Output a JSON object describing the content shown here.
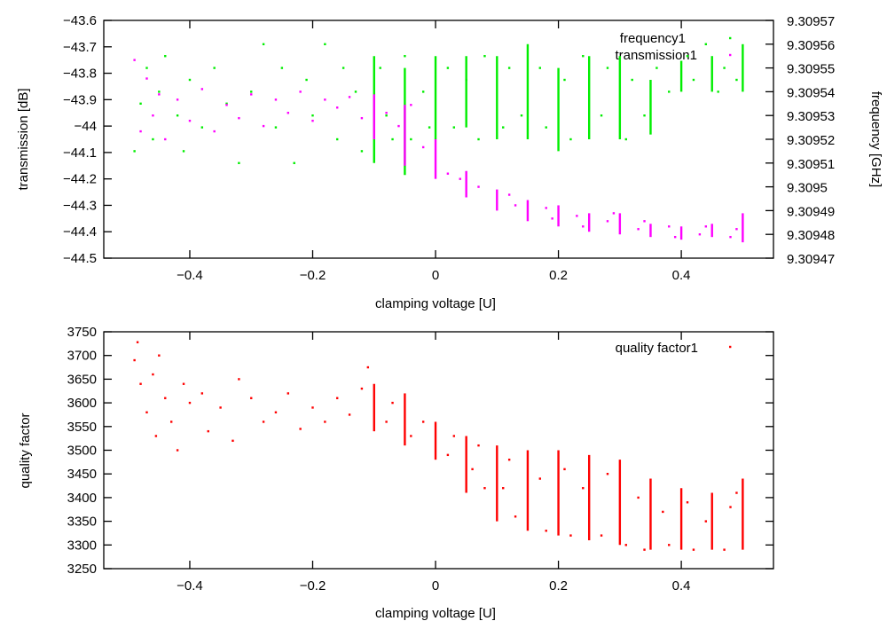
{
  "chart_data": [
    {
      "type": "scatter",
      "xlabel": "clamping voltage [U]",
      "ylabel": "transmission [dB]",
      "y2label": "frequency [GHz]",
      "xlim": [
        -0.54,
        0.55
      ],
      "ylim": [
        -44.5,
        -43.6
      ],
      "y2lim": [
        9.30947,
        9.30957
      ],
      "xticks": [
        -0.4,
        -0.2,
        0,
        0.2,
        0.4
      ],
      "xtick_labels": [
        "−0.4",
        "−0.2",
        "0",
        "0.2",
        "0.4"
      ],
      "yticks": [
        -43.6,
        -43.7,
        -43.8,
        -43.9,
        -44,
        -44.1,
        -44.2,
        -44.3,
        -44.4,
        -44.5
      ],
      "ytick_labels": [
        "−43.6",
        "−43.7",
        "−43.8",
        "−43.9",
        "−44",
        "−44.1",
        "−44.2",
        "−44.3",
        "−44.4",
        "−44.5"
      ],
      "y2ticks": [
        9.30957,
        9.30956,
        9.30955,
        9.30954,
        9.30953,
        9.30952,
        9.30951,
        9.3095,
        9.30949,
        9.30948,
        9.30947
      ],
      "y2tick_labels": [
        "9.30957",
        "9.30956",
        "9.30955",
        "9.30954",
        "9.30953",
        "9.30952",
        "9.30951",
        "9.3095",
        "9.30949",
        "9.30948",
        "9.30947"
      ],
      "grid": false,
      "legend_position": "top-right",
      "series": [
        {
          "name": "frequency1",
          "axis": "y2",
          "color": "#00ee00",
          "points": [
            [
              -0.49,
              9.309515
            ],
            [
              -0.48,
              9.309535
            ],
            [
              -0.47,
              9.30955
            ],
            [
              -0.46,
              9.30952
            ],
            [
              -0.45,
              9.30954
            ],
            [
              -0.44,
              9.309555
            ],
            [
              -0.42,
              9.30953
            ],
            [
              -0.41,
              9.309515
            ],
            [
              -0.4,
              9.309545
            ],
            [
              -0.38,
              9.309525
            ],
            [
              -0.36,
              9.30955
            ],
            [
              -0.34,
              9.309535
            ],
            [
              -0.32,
              9.30951
            ],
            [
              -0.3,
              9.30954
            ],
            [
              -0.28,
              9.30956
            ],
            [
              -0.26,
              9.309525
            ],
            [
              -0.25,
              9.30955
            ],
            [
              -0.23,
              9.30951
            ],
            [
              -0.21,
              9.309545
            ],
            [
              -0.2,
              9.30953
            ],
            [
              -0.18,
              9.30956
            ],
            [
              -0.16,
              9.30952
            ],
            [
              -0.15,
              9.30955
            ],
            [
              -0.13,
              9.30954
            ],
            [
              -0.12,
              9.309515
            ],
            [
              -0.09,
              9.30955
            ],
            [
              -0.08,
              9.30953
            ],
            [
              -0.07,
              9.30952
            ],
            [
              -0.05,
              9.309555
            ],
            [
              -0.04,
              9.30952
            ],
            [
              -0.02,
              9.30954
            ],
            [
              -0.01,
              9.309525
            ],
            [
              0.02,
              9.30955
            ],
            [
              0.03,
              9.309525
            ],
            [
              0.05,
              9.309545
            ],
            [
              0.07,
              9.30952
            ],
            [
              0.08,
              9.309555
            ],
            [
              0.11,
              9.309525
            ],
            [
              0.12,
              9.30955
            ],
            [
              0.14,
              9.30953
            ],
            [
              0.17,
              9.30955
            ],
            [
              0.18,
              9.309525
            ],
            [
              0.21,
              9.309545
            ],
            [
              0.22,
              9.30952
            ],
            [
              0.24,
              9.309555
            ],
            [
              0.27,
              9.30953
            ],
            [
              0.28,
              9.30955
            ],
            [
              0.31,
              9.30952
            ],
            [
              0.32,
              9.309545
            ],
            [
              0.34,
              9.30953
            ],
            [
              0.36,
              9.30955
            ],
            [
              0.38,
              9.30954
            ],
            [
              0.41,
              9.309555
            ],
            [
              0.42,
              9.309545
            ],
            [
              0.44,
              9.30956
            ],
            [
              0.46,
              9.30954
            ],
            [
              0.47,
              9.30955
            ],
            [
              0.49,
              9.309545
            ]
          ],
          "streaks": [
            [
              -0.1,
              9.30951,
              9.309555
            ],
            [
              -0.05,
              9.309505,
              9.30955
            ],
            [
              0,
              9.30952,
              9.309555
            ],
            [
              0.05,
              9.309525,
              9.309555
            ],
            [
              0.1,
              9.30952,
              9.309555
            ],
            [
              0.15,
              9.30952,
              9.30956
            ],
            [
              0.2,
              9.309515,
              9.30955
            ],
            [
              0.25,
              9.30952,
              9.309555
            ],
            [
              0.3,
              9.30952,
              9.309555
            ],
            [
              0.35,
              9.309522,
              9.309545
            ],
            [
              0.4,
              9.30954,
              9.309553
            ],
            [
              0.45,
              9.30954,
              9.309555
            ],
            [
              0.5,
              9.30954,
              9.30956
            ]
          ]
        },
        {
          "name": "transmission1",
          "axis": "y",
          "color": "#ff00ff",
          "points": [
            [
              -0.49,
              -43.75
            ],
            [
              -0.48,
              -44.02
            ],
            [
              -0.47,
              -43.82
            ],
            [
              -0.46,
              -43.96
            ],
            [
              -0.45,
              -43.88
            ],
            [
              -0.44,
              -44.05
            ],
            [
              -0.42,
              -43.9
            ],
            [
              -0.4,
              -43.98
            ],
            [
              -0.38,
              -43.86
            ],
            [
              -0.36,
              -44.02
            ],
            [
              -0.34,
              -43.92
            ],
            [
              -0.32,
              -43.97
            ],
            [
              -0.3,
              -43.88
            ],
            [
              -0.28,
              -44.0
            ],
            [
              -0.26,
              -43.9
            ],
            [
              -0.24,
              -43.95
            ],
            [
              -0.22,
              -43.87
            ],
            [
              -0.2,
              -43.98
            ],
            [
              -0.18,
              -43.9
            ],
            [
              -0.16,
              -43.93
            ],
            [
              -0.14,
              -43.89
            ],
            [
              -0.12,
              -43.97
            ],
            [
              -0.08,
              -43.95
            ],
            [
              -0.06,
              -44.0
            ],
            [
              -0.04,
              -43.92
            ],
            [
              -0.02,
              -44.08
            ],
            [
              0.02,
              -44.18
            ],
            [
              0.04,
              -44.2
            ],
            [
              0.07,
              -44.23
            ],
            [
              0.12,
              -44.26
            ],
            [
              0.13,
              -44.3
            ],
            [
              0.18,
              -44.31
            ],
            [
              0.19,
              -44.35
            ],
            [
              0.23,
              -44.34
            ],
            [
              0.24,
              -44.38
            ],
            [
              0.28,
              -44.36
            ],
            [
              0.29,
              -44.33
            ],
            [
              0.33,
              -44.39
            ],
            [
              0.34,
              -44.36
            ],
            [
              0.38,
              -44.38
            ],
            [
              0.39,
              -44.42
            ],
            [
              0.43,
              -44.41
            ],
            [
              0.44,
              -44.38
            ],
            [
              0.48,
              -44.42
            ],
            [
              0.49,
              -44.39
            ]
          ],
          "streaks": [
            [
              -0.1,
              -43.88,
              -44.05
            ],
            [
              -0.05,
              -43.92,
              -44.15
            ],
            [
              0,
              -44.05,
              -44.2
            ],
            [
              0.05,
              -44.17,
              -44.27
            ],
            [
              0.1,
              -44.24,
              -44.32
            ],
            [
              0.15,
              -44.28,
              -44.36
            ],
            [
              0.2,
              -44.3,
              -44.38
            ],
            [
              0.25,
              -44.33,
              -44.4
            ],
            [
              0.3,
              -44.33,
              -44.41
            ],
            [
              0.35,
              -44.37,
              -44.42
            ],
            [
              0.4,
              -44.38,
              -44.43
            ],
            [
              0.45,
              -44.37,
              -44.42
            ],
            [
              0.5,
              -44.33,
              -44.44
            ]
          ]
        }
      ]
    },
    {
      "type": "scatter",
      "xlabel": "clamping voltage [U]",
      "ylabel": "quality factor",
      "xlim": [
        -0.54,
        0.55
      ],
      "ylim": [
        3250,
        3750
      ],
      "xticks": [
        -0.4,
        -0.2,
        0,
        0.2,
        0.4
      ],
      "xtick_labels": [
        "−0.4",
        "−0.2",
        "0",
        "0.2",
        "0.4"
      ],
      "yticks": [
        3750,
        3700,
        3650,
        3600,
        3550,
        3500,
        3450,
        3400,
        3350,
        3300,
        3250
      ],
      "ytick_labels": [
        "3750",
        "3700",
        "3650",
        "3600",
        "3550",
        "3500",
        "3450",
        "3400",
        "3350",
        "3300",
        "3250"
      ],
      "grid": false,
      "legend_position": "top-right",
      "series": [
        {
          "name": "quality factor1",
          "axis": "y",
          "color": "#ff0000",
          "points": [
            [
              -0.49,
              3690
            ],
            [
              -0.485,
              3728
            ],
            [
              -0.48,
              3640
            ],
            [
              -0.47,
              3580
            ],
            [
              -0.46,
              3660
            ],
            [
              -0.455,
              3530
            ],
            [
              -0.45,
              3700
            ],
            [
              -0.44,
              3610
            ],
            [
              -0.43,
              3560
            ],
            [
              -0.42,
              3500
            ],
            [
              -0.41,
              3640
            ],
            [
              -0.4,
              3600
            ],
            [
              -0.38,
              3620
            ],
            [
              -0.37,
              3540
            ],
            [
              -0.35,
              3590
            ],
            [
              -0.33,
              3520
            ],
            [
              -0.32,
              3650
            ],
            [
              -0.3,
              3610
            ],
            [
              -0.28,
              3560
            ],
            [
              -0.26,
              3580
            ],
            [
              -0.24,
              3620
            ],
            [
              -0.22,
              3545
            ],
            [
              -0.2,
              3590
            ],
            [
              -0.18,
              3560
            ],
            [
              -0.16,
              3610
            ],
            [
              -0.14,
              3575
            ],
            [
              -0.12,
              3630
            ],
            [
              -0.11,
              3675
            ],
            [
              -0.08,
              3560
            ],
            [
              -0.07,
              3600
            ],
            [
              -0.04,
              3530
            ],
            [
              -0.02,
              3560
            ],
            [
              0.02,
              3490
            ],
            [
              0.03,
              3530
            ],
            [
              0.06,
              3460
            ],
            [
              0.07,
              3510
            ],
            [
              0.08,
              3420
            ],
            [
              0.11,
              3420
            ],
            [
              0.12,
              3480
            ],
            [
              0.13,
              3360
            ],
            [
              0.17,
              3440
            ],
            [
              0.18,
              3330
            ],
            [
              0.21,
              3460
            ],
            [
              0.22,
              3320
            ],
            [
              0.24,
              3420
            ],
            [
              0.27,
              3320
            ],
            [
              0.28,
              3450
            ],
            [
              0.31,
              3300
            ],
            [
              0.33,
              3400
            ],
            [
              0.34,
              3290
            ],
            [
              0.37,
              3370
            ],
            [
              0.38,
              3300
            ],
            [
              0.41,
              3390
            ],
            [
              0.42,
              3290
            ],
            [
              0.44,
              3350
            ],
            [
              0.47,
              3290
            ],
            [
              0.48,
              3380
            ],
            [
              0.49,
              3410
            ]
          ],
          "streaks": [
            [
              -0.1,
              3540,
              3640
            ],
            [
              -0.05,
              3510,
              3620
            ],
            [
              0,
              3480,
              3560
            ],
            [
              0.05,
              3410,
              3530
            ],
            [
              0.1,
              3350,
              3510
            ],
            [
              0.15,
              3330,
              3500
            ],
            [
              0.2,
              3320,
              3500
            ],
            [
              0.25,
              3310,
              3490
            ],
            [
              0.3,
              3300,
              3480
            ],
            [
              0.35,
              3290,
              3440
            ],
            [
              0.4,
              3290,
              3420
            ],
            [
              0.45,
              3290,
              3410
            ],
            [
              0.5,
              3290,
              3440
            ]
          ]
        }
      ]
    }
  ]
}
